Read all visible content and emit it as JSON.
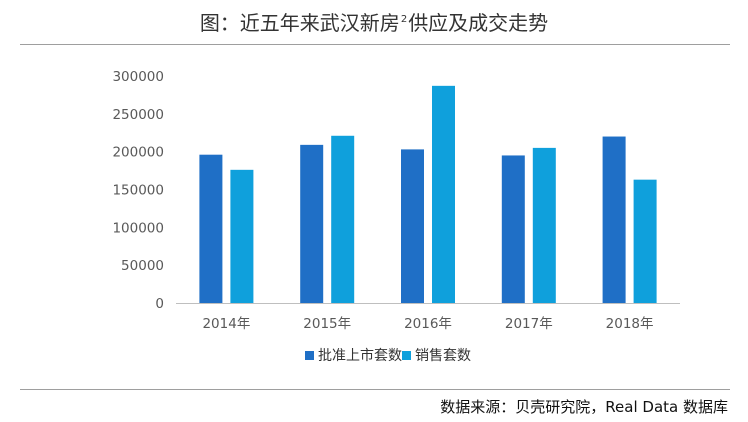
{
  "header": {
    "title_main": "图：近五年来武汉新房",
    "title_sup": "2",
    "title_end": "供应及成交走势"
  },
  "footer": {
    "source": "数据来源：贝壳研究院，Real Data 数据库"
  },
  "colors": {
    "series_1": "#1f6fc6",
    "series_2": "#0fa0dc",
    "axis": "#bfbfbf"
  },
  "chart_data": {
    "type": "bar",
    "title": "",
    "xlabel": "",
    "ylabel": "",
    "categories": [
      "2014年",
      "2015年",
      "2016年",
      "2017年",
      "2018年"
    ],
    "series": [
      {
        "name": "批准上市套数",
        "values": [
          196000,
          209000,
          203000,
          195000,
          220000
        ]
      },
      {
        "name": "销售套数",
        "values": [
          176000,
          221000,
          287000,
          205000,
          163000
        ]
      }
    ],
    "ylim": [
      0,
      300000
    ],
    "yticks": [
      "0",
      "50000",
      "100000",
      "150000",
      "200000",
      "250000",
      "300000"
    ],
    "grid": false,
    "legend_position": "bottom-center"
  }
}
